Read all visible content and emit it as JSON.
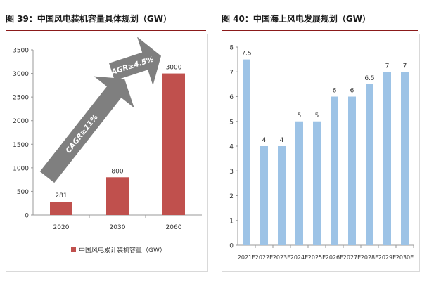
{
  "left_figure": {
    "title": "图 39：中国风电装机容量具体规划（GW）"
  },
  "right_figure": {
    "title": "图 40：中国海上风电发展规划（GW）"
  },
  "colors": {
    "left_bar": "#c0504d",
    "right_bar": "#9dc3e6",
    "arrow": "#7f7f7f",
    "title_rule": "#8b1a1a"
  },
  "chart_data": [
    {
      "type": "bar",
      "title": "",
      "categories": [
        "2020",
        "2030",
        "2060"
      ],
      "series": [
        {
          "name": "中国风电累计装机容量（GW）",
          "values": [
            281,
            800,
            3000
          ]
        }
      ],
      "data_labels": [
        "281",
        "800",
        "3000"
      ],
      "xlabel": "",
      "ylabel": "",
      "ylim": [
        0,
        3500
      ],
      "yticks": [
        "0",
        "500",
        "1000",
        "1500",
        "2000",
        "2500",
        "3000",
        "3500"
      ],
      "grid": false,
      "legend_position": "bottom",
      "annotations": [
        "CAGR≥11%",
        "CAGR≥4.5%"
      ]
    },
    {
      "type": "bar",
      "title": "",
      "categories": [
        "2021E",
        "2022E",
        "2023E",
        "2024E",
        "2025E",
        "2026E",
        "2027E",
        "2028E",
        "2029E",
        "2030E"
      ],
      "series": [
        {
          "values": [
            7.5,
            4,
            4,
            5,
            5,
            6,
            6,
            6.5,
            7,
            7
          ]
        }
      ],
      "data_labels": [
        "7.5",
        "4",
        "4",
        "5",
        "5",
        "6",
        "6",
        "6.5",
        "7",
        "7"
      ],
      "xlabel": "",
      "ylabel": "",
      "ylim": [
        0,
        8
      ],
      "yticks": [
        "0",
        "1",
        "2",
        "3",
        "4",
        "5",
        "6",
        "7",
        "8"
      ],
      "grid": false,
      "legend_position": "none"
    }
  ]
}
